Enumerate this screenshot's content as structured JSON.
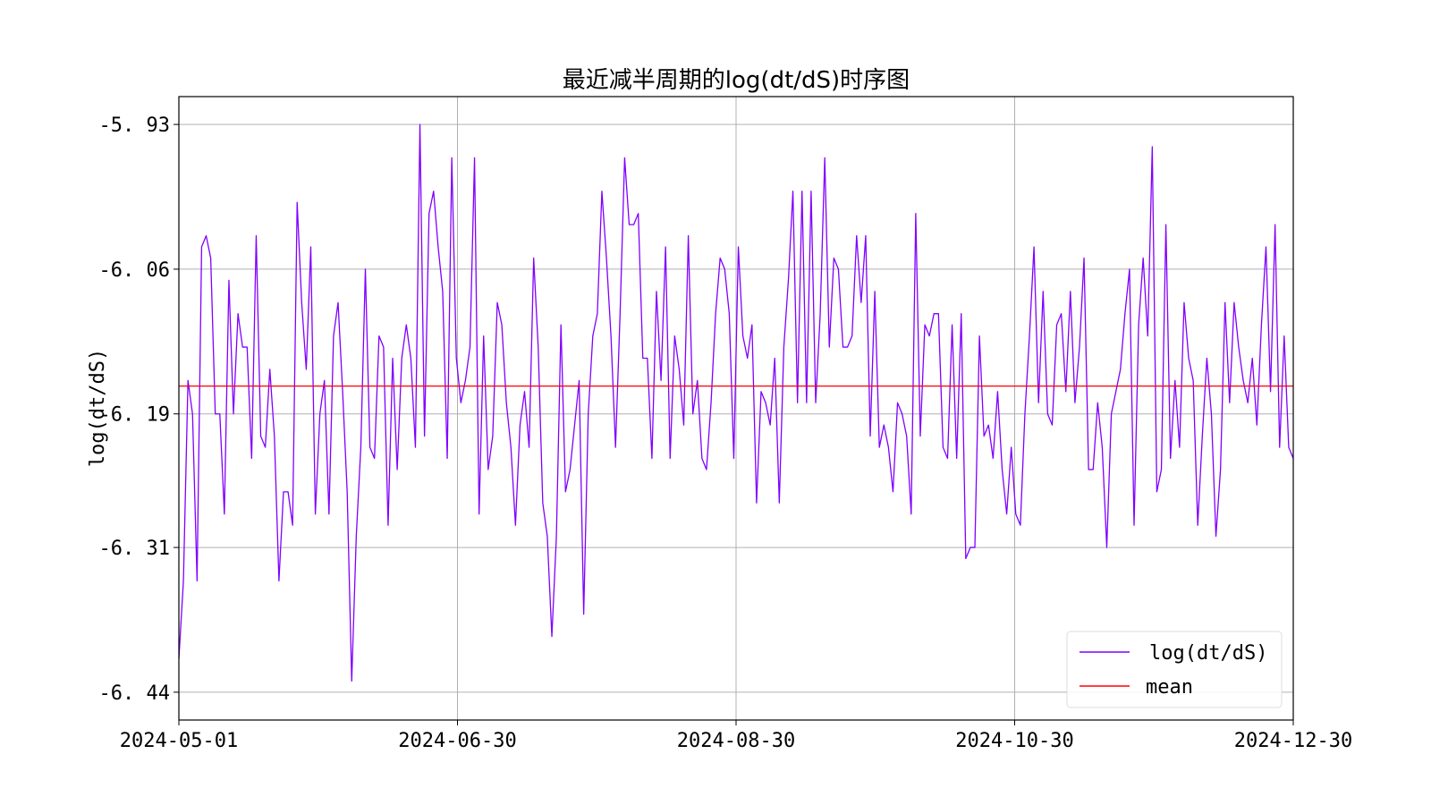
{
  "chart_data": {
    "type": "line",
    "title": "最近减半周期的log(dt/dS)时序图",
    "xlabel": "",
    "ylabel": "log(dt/dS)",
    "x_start": "2024-05-01",
    "x_end": "2024-12-30",
    "x_ticks": [
      "2024-05-01",
      "2024-06-30",
      "2024-08-30",
      "2024-10-30",
      "2024-12-30"
    ],
    "y_ticks": [
      "-5.93",
      "-6.06",
      "-6.19",
      "-6.31",
      "-6.44"
    ],
    "ylim": [
      -6.465,
      -5.905
    ],
    "grid": true,
    "legend_position": "lower-right",
    "series": [
      {
        "name": "log(dt/dS)",
        "color": "#8000ff",
        "values": [
          -6.41,
          -6.34,
          -6.16,
          -6.19,
          -6.34,
          -6.04,
          -6.03,
          -6.05,
          -6.19,
          -6.19,
          -6.28,
          -6.07,
          -6.19,
          -6.1,
          -6.13,
          -6.13,
          -6.23,
          -6.03,
          -6.21,
          -6.22,
          -6.15,
          -6.21,
          -6.34,
          -6.26,
          -6.26,
          -6.29,
          -6.0,
          -6.09,
          -6.15,
          -6.04,
          -6.28,
          -6.19,
          -6.16,
          -6.28,
          -6.12,
          -6.09,
          -6.17,
          -6.26,
          -6.43,
          -6.3,
          -6.22,
          -6.06,
          -6.22,
          -6.23,
          -6.12,
          -6.13,
          -6.29,
          -6.14,
          -6.24,
          -6.14,
          -6.11,
          -6.14,
          -6.22,
          -5.93,
          -6.21,
          -6.01,
          -5.99,
          -6.04,
          -6.08,
          -6.23,
          -5.96,
          -6.14,
          -6.18,
          -6.16,
          -6.13,
          -5.96,
          -6.28,
          -6.12,
          -6.24,
          -6.21,
          -6.09,
          -6.11,
          -6.18,
          -6.22,
          -6.29,
          -6.2,
          -6.17,
          -6.22,
          -6.05,
          -6.13,
          -6.27,
          -6.3,
          -6.39,
          -6.3,
          -6.11,
          -6.26,
          -6.24,
          -6.2,
          -6.16,
          -6.37,
          -6.19,
          -6.12,
          -6.1,
          -5.99,
          -6.05,
          -6.12,
          -6.22,
          -6.1,
          -5.96,
          -6.02,
          -6.02,
          -6.01,
          -6.14,
          -6.14,
          -6.23,
          -6.08,
          -6.16,
          -6.04,
          -6.23,
          -6.12,
          -6.15,
          -6.2,
          -6.03,
          -6.19,
          -6.16,
          -6.23,
          -6.24,
          -6.18,
          -6.1,
          -6.05,
          -6.06,
          -6.1,
          -6.23,
          -6.04,
          -6.12,
          -6.14,
          -6.11,
          -6.27,
          -6.17,
          -6.18,
          -6.2,
          -6.14,
          -6.27,
          -6.13,
          -6.07,
          -5.99,
          -6.18,
          -5.99,
          -6.18,
          -5.99,
          -6.18,
          -6.1,
          -5.96,
          -6.13,
          -6.05,
          -6.06,
          -6.13,
          -6.13,
          -6.12,
          -6.03,
          -6.09,
          -6.03,
          -6.21,
          -6.08,
          -6.22,
          -6.2,
          -6.22,
          -6.26,
          -6.18,
          -6.19,
          -6.21,
          -6.28,
          -6.01,
          -6.21,
          -6.11,
          -6.12,
          -6.1,
          -6.1,
          -6.22,
          -6.23,
          -6.11,
          -6.23,
          -6.1,
          -6.32,
          -6.31,
          -6.31,
          -6.12,
          -6.21,
          -6.2,
          -6.23,
          -6.17,
          -6.24,
          -6.28,
          -6.22,
          -6.28,
          -6.29,
          -6.19,
          -6.12,
          -6.04,
          -6.18,
          -6.08,
          -6.19,
          -6.2,
          -6.11,
          -6.1,
          -6.17,
          -6.08,
          -6.18,
          -6.13,
          -6.05,
          -6.24,
          -6.24,
          -6.18,
          -6.22,
          -6.31,
          -6.19,
          -6.17,
          -6.15,
          -6.1,
          -6.06,
          -6.29,
          -6.11,
          -6.05,
          -6.12,
          -5.95,
          -6.26,
          -6.24,
          -6.02,
          -6.23,
          -6.16,
          -6.22,
          -6.09,
          -6.14,
          -6.16,
          -6.29,
          -6.21,
          -6.14,
          -6.19,
          -6.3,
          -6.24,
          -6.09,
          -6.18,
          -6.09,
          -6.13,
          -6.16,
          -6.18,
          -6.14,
          -6.2,
          -6.11,
          -6.04,
          -6.17,
          -6.02,
          -6.22,
          -6.12,
          -6.22,
          -6.23
        ]
      },
      {
        "name": "mean",
        "color": "#ff0000",
        "values": [
          -6.165
        ]
      }
    ]
  }
}
